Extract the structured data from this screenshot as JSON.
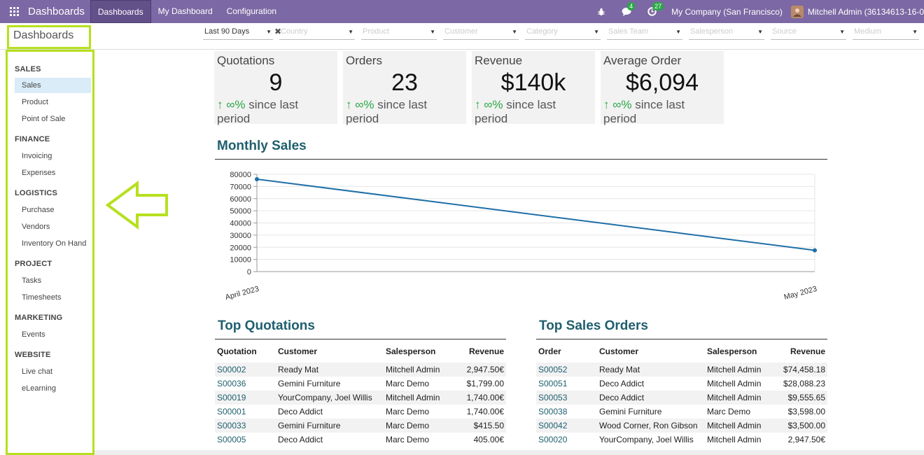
{
  "navbar": {
    "brand": "Dashboards",
    "menu": [
      "Dashboards",
      "My Dashboard",
      "Configuration"
    ],
    "messages_count": "4",
    "activities_count": "27",
    "company": "My Company (San Francisco)",
    "user": "Mitchell Admin (36134613-16-0"
  },
  "control": {
    "title": "Dashboards",
    "filters": [
      "Last 90 Days",
      "Country",
      "Product",
      "Customer",
      "Category",
      "Sales Team",
      "Salesperson",
      "Source",
      "Medium"
    ]
  },
  "sidebar": {
    "groups": [
      {
        "title": "SALES",
        "items": [
          "Sales",
          "Product",
          "Point of Sale"
        ]
      },
      {
        "title": "FINANCE",
        "items": [
          "Invoicing",
          "Expenses"
        ]
      },
      {
        "title": "LOGISTICS",
        "items": [
          "Purchase",
          "Vendors",
          "Inventory On Hand"
        ]
      },
      {
        "title": "PROJECT",
        "items": [
          "Tasks",
          "Timesheets"
        ]
      },
      {
        "title": "MARKETING",
        "items": [
          "Events"
        ]
      },
      {
        "title": "WEBSITE",
        "items": [
          "Live chat",
          "eLearning"
        ]
      }
    ]
  },
  "kpis": [
    {
      "label": "Quotations",
      "value": "9",
      "pct": "∞%",
      "since": "since last period"
    },
    {
      "label": "Orders",
      "value": "23",
      "pct": "∞%",
      "since": "since last period"
    },
    {
      "label": "Revenue",
      "value": "$140k",
      "pct": "∞%",
      "since": "since last period"
    },
    {
      "label": "Average Order",
      "value": "$6,094",
      "pct": "∞%",
      "since": "since last period"
    }
  ],
  "monthly_sales": {
    "title": "Monthly Sales"
  },
  "chart_data": {
    "type": "line",
    "categories": [
      "April 2023",
      "May 2023"
    ],
    "series": [
      {
        "values": [
          76000,
          17500
        ]
      }
    ],
    "yticks": [
      0,
      10000,
      20000,
      30000,
      40000,
      50000,
      60000,
      70000,
      80000
    ],
    "ylim": [
      0,
      80000
    ],
    "grid": true,
    "colors": {
      "line": "#1f6fa8",
      "grid": "#e6e6e6"
    }
  },
  "top_quotations": {
    "title": "Top Quotations",
    "headers": [
      "Quotation",
      "Customer",
      "Salesperson",
      "Revenue"
    ],
    "rows": [
      [
        "S00002",
        "Ready Mat",
        "Mitchell Admin",
        "2,947.50€"
      ],
      [
        "S00036",
        "Gemini Furniture",
        "Marc Demo",
        "$1,799.00"
      ],
      [
        "S00019",
        "YourCompany, Joel Willis",
        "Mitchell Admin",
        "1,740.00€"
      ],
      [
        "S00001",
        "Deco Addict",
        "Marc Demo",
        "1,740.00€"
      ],
      [
        "S00033",
        "Gemini Furniture",
        "Marc Demo",
        "$415.50"
      ],
      [
        "S00005",
        "Deco Addict",
        "Marc Demo",
        "405.00€"
      ]
    ]
  },
  "top_orders": {
    "title": "Top Sales Orders",
    "headers": [
      "Order",
      "Customer",
      "Salesperson",
      "Revenue"
    ],
    "rows": [
      [
        "S00052",
        "Ready Mat",
        "Mitchell Admin",
        "$74,458.18"
      ],
      [
        "S00051",
        "Deco Addict",
        "Mitchell Admin",
        "$28,088.23"
      ],
      [
        "S00053",
        "Deco Addict",
        "Mitchell Admin",
        "$9,555.65"
      ],
      [
        "S00038",
        "Gemini Furniture",
        "Marc Demo",
        "$3,598.00"
      ],
      [
        "S00042",
        "Wood Corner, Ron Gibson",
        "Mitchell Admin",
        "$3,500.00"
      ],
      [
        "S00020",
        "YourCompany, Joel Willis",
        "Mitchell Admin",
        "2,947.50€"
      ]
    ]
  },
  "colors": {
    "navbar": "#7c68a4",
    "highlight": "#b6e01e",
    "accent": "#1f5f6e",
    "positive": "#28a745"
  }
}
